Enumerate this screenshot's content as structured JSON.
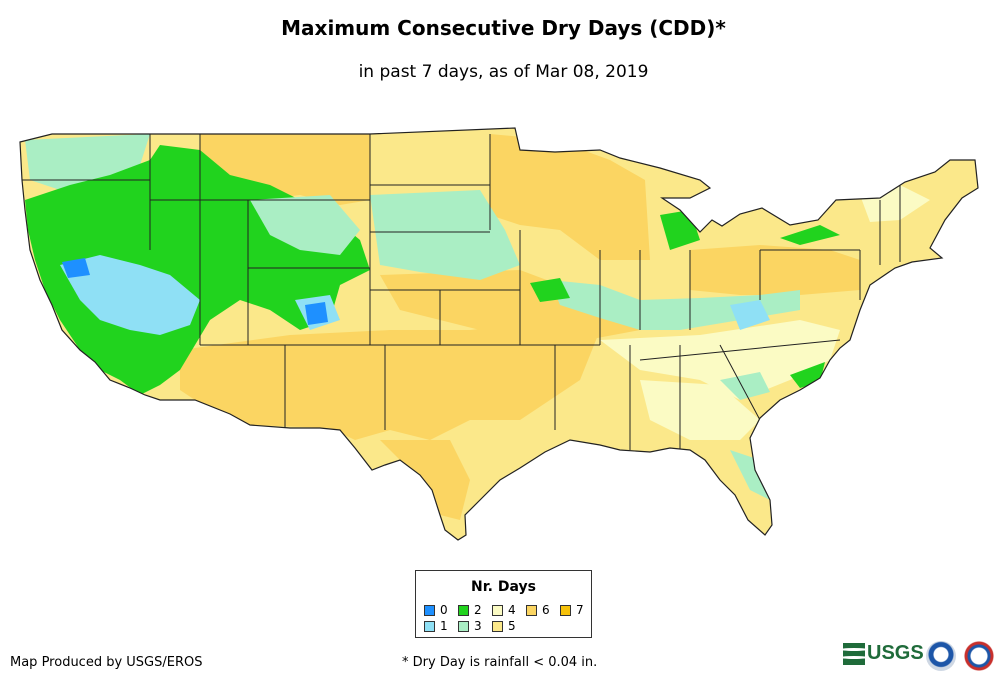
{
  "header": {
    "title": "Maximum Consecutive Dry Days (CDD)*",
    "subtitle": "in past 7 days, as of Mar 08, 2019"
  },
  "legend": {
    "title": "Nr. Days",
    "items": [
      {
        "label": "0",
        "color": "#1e90ff"
      },
      {
        "label": "1",
        "color": "#8fe0f5"
      },
      {
        "label": "2",
        "color": "#21d31e"
      },
      {
        "label": "3",
        "color": "#aaeec4"
      },
      {
        "label": "4",
        "color": "#fbfbc4"
      },
      {
        "label": "5",
        "color": "#fbe88a"
      },
      {
        "label": "6",
        "color": "#fbd562"
      },
      {
        "label": "7",
        "color": "#f6c20a"
      }
    ]
  },
  "footer": {
    "credit": "Map Produced by USGS/EROS",
    "footnote": "* Dry Day is rainfall < 0.04 in.",
    "logos": [
      "usgs-logo",
      "noaa-logo",
      "nws-logo"
    ],
    "usgs_text": "USGS"
  }
}
